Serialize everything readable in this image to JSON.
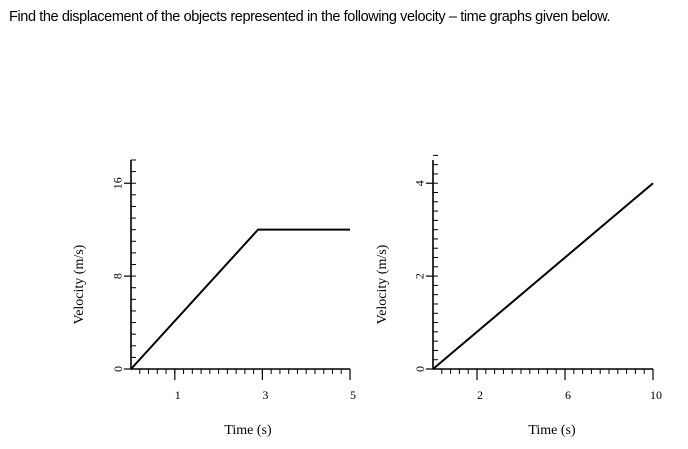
{
  "question": {
    "text": "Find the displacement of the objects represented in the following velocity – time graphs given below."
  },
  "chart_data": [
    {
      "type": "line",
      "title": "",
      "xlabel": "Time (s)",
      "ylabel": "Velocity (m/s)",
      "xlim": [
        0,
        5
      ],
      "ylim": [
        0,
        18
      ],
      "xticks": [
        1,
        3,
        5
      ],
      "yticks": [
        0,
        8,
        16
      ],
      "x_minor_step": 0.2,
      "y_minor_step": 1,
      "grid": false,
      "series": [
        {
          "x": [
            0,
            2.9,
            5.0
          ],
          "y": [
            0,
            12,
            12
          ]
        }
      ]
    },
    {
      "type": "line",
      "title": "",
      "xlabel": "Time (s)",
      "ylabel": "Velocity (m/s)",
      "xlim": [
        0,
        10
      ],
      "ylim": [
        0,
        4.5
      ],
      "xticks": [
        2,
        6,
        10
      ],
      "yticks": [
        0,
        2,
        4
      ],
      "x_minor_step": 0.4,
      "y_minor_step": 0.2,
      "grid": false,
      "series": [
        {
          "x": [
            0,
            10
          ],
          "y": [
            0,
            4
          ]
        }
      ]
    }
  ]
}
